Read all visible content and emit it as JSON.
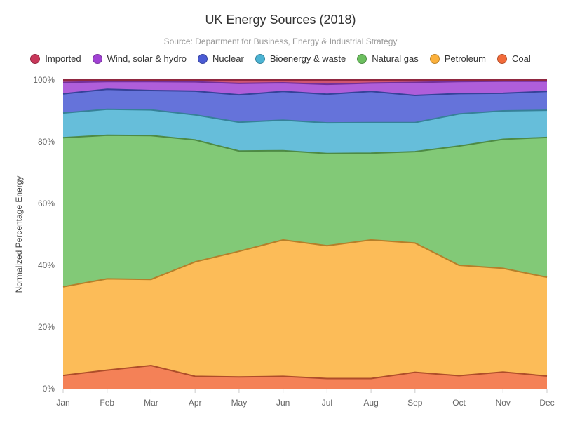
{
  "chart_data": {
    "type": "area",
    "stacked": true,
    "normalized": true,
    "title": "UK Energy Sources (2018)",
    "subtitle": "Source: Department for Business, Energy & Industrial Strategy",
    "xlabel": "",
    "ylabel": "Normalized Percentage Energy",
    "ylim": [
      0,
      100
    ],
    "yticks": [
      "0%",
      "20%",
      "40%",
      "60%",
      "80%",
      "100%"
    ],
    "grid": false,
    "legend_position": "top",
    "categories": [
      "Jan",
      "Feb",
      "Mar",
      "Apr",
      "May",
      "Jun",
      "Jul",
      "Aug",
      "Sep",
      "Oct",
      "Nov",
      "Dec"
    ],
    "series": [
      {
        "name": "Coal",
        "color": "#f26b3a",
        "values": [
          4.3,
          6.0,
          7.5,
          4.0,
          3.8,
          4.0,
          3.3,
          3.3,
          5.3,
          4.2,
          5.4,
          4.1
        ]
      },
      {
        "name": "Petroleum",
        "color": "#fbb03b",
        "values": [
          28.7,
          29.6,
          27.9,
          37.1,
          40.7,
          44.2,
          43.0,
          44.9,
          41.9,
          35.8,
          33.6,
          32.0
        ]
      },
      {
        "name": "Natural gas",
        "color": "#6cbf5f",
        "values": [
          48.3,
          46.5,
          46.6,
          39.5,
          32.5,
          28.9,
          29.9,
          28.1,
          29.6,
          38.6,
          41.8,
          45.3
        ]
      },
      {
        "name": "Bioenergy & waste",
        "color": "#4bb3d3",
        "values": [
          8.0,
          8.4,
          8.3,
          8.1,
          9.3,
          9.9,
          9.9,
          9.9,
          9.4,
          10.4,
          9.2,
          8.8
        ]
      },
      {
        "name": "Nuclear",
        "color": "#4a5bd4",
        "values": [
          6.2,
          6.5,
          6.3,
          7.7,
          8.9,
          9.3,
          9.3,
          10.1,
          8.8,
          6.6,
          5.7,
          6.1
        ]
      },
      {
        "name": "Wind, solar & hydro",
        "color": "#a142d4",
        "values": [
          3.7,
          2.5,
          2.9,
          3.0,
          3.7,
          2.8,
          3.2,
          2.7,
          4.2,
          3.9,
          3.9,
          3.3
        ]
      },
      {
        "name": "Imported",
        "color": "#c8375a",
        "values": [
          0.8,
          0.5,
          0.5,
          0.6,
          1.1,
          0.9,
          1.4,
          1.0,
          0.8,
          0.5,
          0.4,
          0.4
        ]
      }
    ],
    "legend_order": [
      "Imported",
      "Wind, solar & hydro",
      "Nuclear",
      "Bioenergy & waste",
      "Natural gas",
      "Petroleum",
      "Coal"
    ]
  }
}
